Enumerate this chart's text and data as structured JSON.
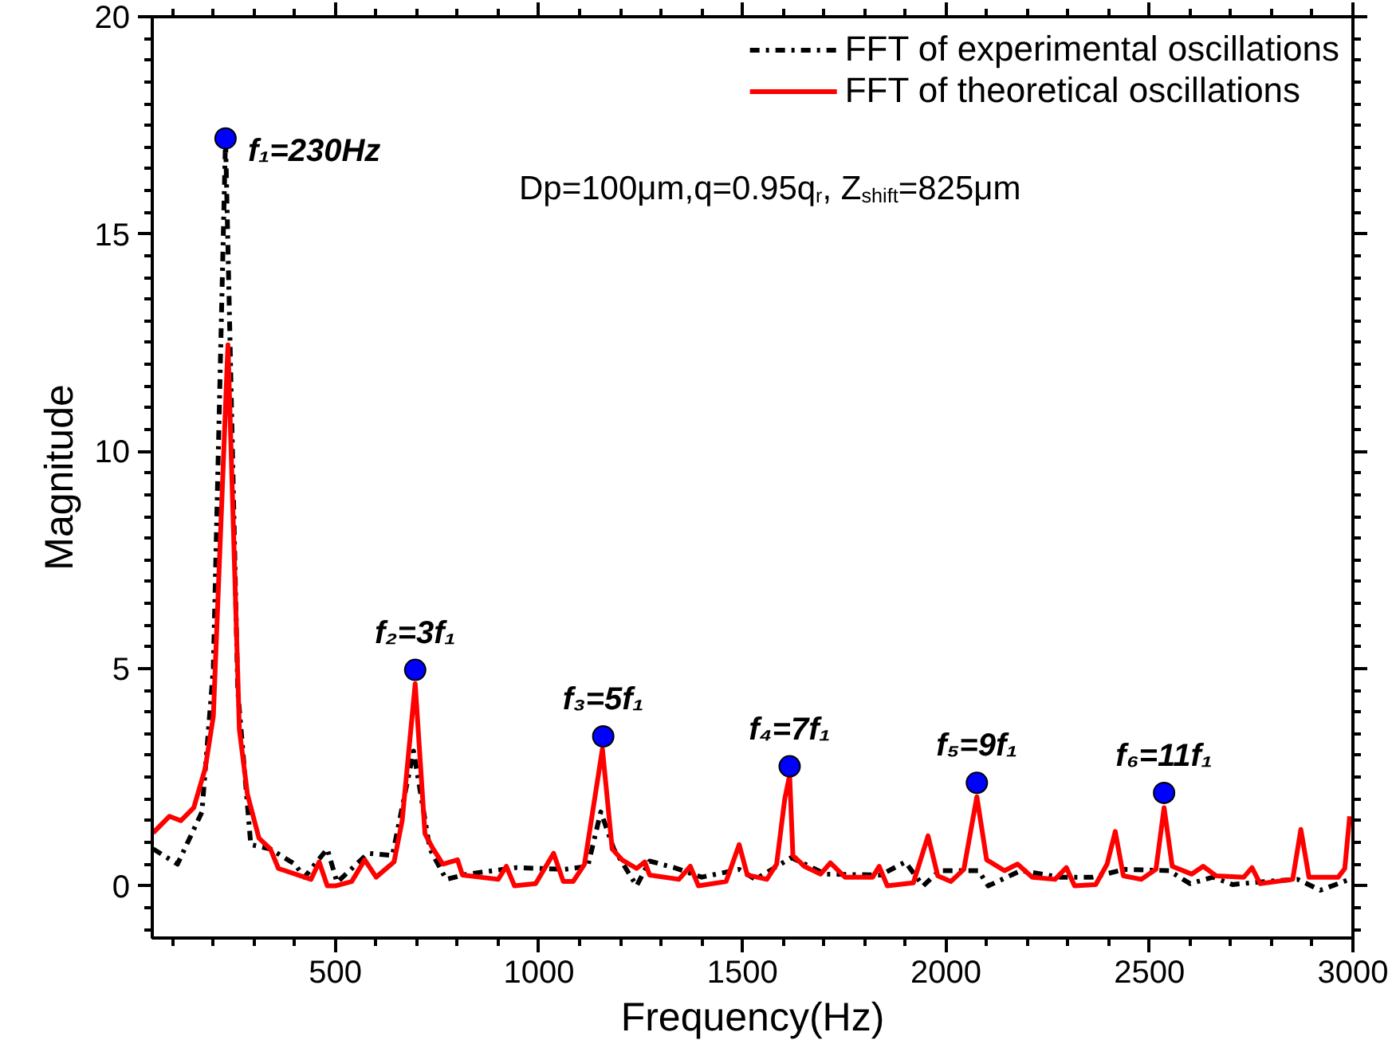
{
  "chart_data": {
    "type": "line",
    "xlabel": "Frequency(Hz)",
    "ylabel": "Magnitude",
    "xlim": [
      50,
      3000
    ],
    "xticks": [
      500,
      1000,
      1500,
      2000,
      2500,
      3000
    ],
    "ylim": [
      -1.2,
      20
    ],
    "yticks": [
      0,
      5,
      10,
      15,
      20
    ],
    "grid": false,
    "legend": "top right",
    "series": [
      {
        "name": "FFT of experimental oscillations",
        "color": "#000000",
        "line_style": "dashdot",
        "marker": "none",
        "x": [
          52,
          112,
          172,
          200,
          230,
          260,
          292,
          340,
          400,
          424,
          480,
          504,
          580,
          640,
          692,
          732,
          772,
          824,
          944,
          1064,
          1120,
          1152,
          1184,
          1240,
          1272,
          1332,
          1400,
          1492,
          1532,
          1620,
          1704,
          1840,
          1900,
          1944,
          1984,
          2080,
          2104,
          2184,
          2280,
          2360,
          2440,
          2548,
          2600,
          2656,
          2704,
          2784,
          2864,
          2920,
          2992
        ],
        "values": [
          0.85,
          0.5,
          1.7,
          5.0,
          17.2,
          4.5,
          0.95,
          0.85,
          0.5,
          0.2,
          0.85,
          0.08,
          0.75,
          0.7,
          3.1,
          0.85,
          0.15,
          0.27,
          0.42,
          0.38,
          0.45,
          1.7,
          0.85,
          0.0,
          0.57,
          0.42,
          0.2,
          0.38,
          0.15,
          0.65,
          0.27,
          0.25,
          0.55,
          0.0,
          0.35,
          0.35,
          0.0,
          0.35,
          0.2,
          0.2,
          0.38,
          0.35,
          0.05,
          0.2,
          0.03,
          0.1,
          0.15,
          -0.1,
          0.15
        ]
      },
      {
        "name": "FFT of theoretical oscillations",
        "color": "#ff0000",
        "line_style": "solid",
        "marker": "none",
        "x": [
          52,
          92,
          120,
          152,
          180,
          200,
          236,
          264,
          284,
          312,
          340,
          360,
          440,
          460,
          480,
          500,
          540,
          572,
          600,
          644,
          664,
          696,
          720,
          740,
          764,
          800,
          812,
          900,
          920,
          940,
          992,
          1036,
          1060,
          1084,
          1112,
          1156,
          1180,
          1204,
          1240,
          1260,
          1272,
          1344,
          1372,
          1392,
          1460,
          1492,
          1512,
          1560,
          1584,
          1604,
          1616,
          1624,
          1652,
          1692,
          1716,
          1752,
          1820,
          1836,
          1856,
          1920,
          1956,
          1980,
          2012,
          2044,
          2076,
          2100,
          2144,
          2176,
          2212,
          2268,
          2296,
          2316,
          2368,
          2396,
          2416,
          2436,
          2480,
          2516,
          2536,
          2556,
          2604,
          2632,
          2664,
          2732,
          2752,
          2772,
          2852,
          2872,
          2892,
          2964,
          2980,
          2992
        ],
        "values": [
          1.22,
          1.6,
          1.5,
          1.8,
          2.7,
          3.9,
          12.45,
          3.6,
          2.1,
          1.1,
          0.85,
          0.4,
          0.15,
          0.55,
          0.0,
          0.0,
          0.1,
          0.6,
          0.2,
          0.55,
          1.5,
          4.65,
          1.2,
          0.85,
          0.5,
          0.6,
          0.25,
          0.15,
          0.45,
          0.0,
          0.05,
          0.75,
          0.1,
          0.1,
          0.5,
          3.15,
          0.85,
          0.6,
          0.4,
          0.55,
          0.25,
          0.15,
          0.45,
          0.0,
          0.1,
          0.95,
          0.25,
          0.15,
          0.5,
          2.0,
          2.55,
          0.7,
          0.45,
          0.27,
          0.53,
          0.2,
          0.2,
          0.45,
          0.0,
          0.07,
          1.15,
          0.23,
          0.1,
          0.38,
          2.05,
          0.6,
          0.35,
          0.5,
          0.2,
          0.15,
          0.42,
          0.0,
          0.03,
          0.5,
          1.25,
          0.23,
          0.15,
          0.38,
          1.8,
          0.45,
          0.27,
          0.45,
          0.23,
          0.2,
          0.42,
          0.05,
          0.15,
          1.3,
          0.2,
          0.2,
          0.4,
          1.6
        ]
      },
      {
        "type": "scatter",
        "color": "#0000ff",
        "marker": "circle",
        "x": [
          230,
          696,
          1158,
          1616,
          2076,
          2536
        ],
        "values": [
          17.2,
          4.97,
          3.44,
          2.75,
          2.37,
          2.14
        ]
      }
    ],
    "annotations": [
      {
        "text": "f₁=230Hz",
        "x": 230,
        "y": 17.2
      },
      {
        "text": "f₂=3f₁",
        "x": 696,
        "y": 4.97
      },
      {
        "text": "f₃=5f₁",
        "x": 1158,
        "y": 3.44
      },
      {
        "text": "f₄=7f₁",
        "x": 1616,
        "y": 2.75
      },
      {
        "text": "f₅=9f₁",
        "x": 2076,
        "y": 2.37
      },
      {
        "text": "f₆=11f₁",
        "x": 2536,
        "y": 2.14
      },
      "Dp=100μm,q=0.95q$_{r}$, Z$_{shift}$=825μm"
    ]
  }
}
